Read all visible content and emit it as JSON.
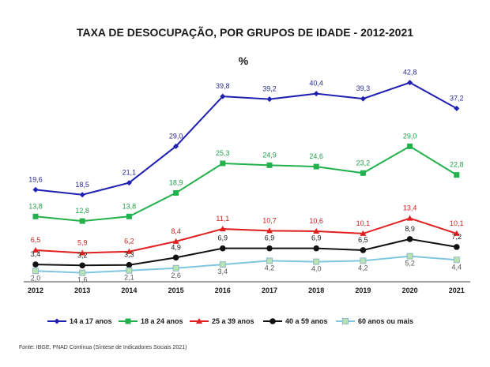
{
  "chart_data": {
    "type": "line",
    "title": "TAXA DE DESOCUPAÇÃO,  POR GRUPOS DE IDADE - 2012-2021",
    "subtitle": "%",
    "x": [
      "2012",
      "2013",
      "2014",
      "2015",
      "2016",
      "2017",
      "2018",
      "2019",
      "2020",
      "2021"
    ],
    "ylim": [
      0,
      45
    ],
    "grid": false,
    "legend_position": "bottom",
    "series": [
      {
        "name": "14 a 17 anos",
        "color": "#2020b0",
        "marker": "diamond",
        "label_color": "#2a2a90",
        "values": [
          19.6,
          18.5,
          21.1,
          29.0,
          39.8,
          39.2,
          40.4,
          39.3,
          42.8,
          37.2
        ],
        "labels": [
          "19,6",
          "18,5",
          "21,1",
          "29,0",
          "39,8",
          "39,2",
          "40,4",
          "39,3",
          "42,8",
          "37,2"
        ]
      },
      {
        "name": "18 a 24 anos",
        "color": "#22b14c",
        "marker": "square",
        "label_color": "#22a04a",
        "values": [
          13.8,
          12.8,
          13.8,
          18.9,
          25.3,
          24.9,
          24.6,
          23.2,
          29.0,
          22.8
        ],
        "labels": [
          "13,8",
          "12,8",
          "13,8",
          "18,9",
          "25,3",
          "24,9",
          "24,6",
          "23,2",
          "29,0",
          "22,8"
        ]
      },
      {
        "name": "25 a 39 anos",
        "color": "#e02020",
        "marker": "triangle",
        "label_color": "#cc2020",
        "values": [
          6.5,
          5.9,
          6.2,
          8.4,
          11.1,
          10.7,
          10.6,
          10.1,
          13.4,
          10.1
        ],
        "labels": [
          "6,5",
          "5,9",
          "6,2",
          "8,4",
          "11,1",
          "10,7",
          "10,6",
          "10,1",
          "13,4",
          "10,1"
        ]
      },
      {
        "name": "40 a 59 anos",
        "color": "#111111",
        "marker": "circle",
        "label_color": "#1a1a1a",
        "values": [
          3.4,
          3.2,
          3.3,
          4.9,
          6.9,
          6.9,
          6.9,
          6.5,
          8.9,
          7.2
        ],
        "labels": [
          "3,4",
          "3,2",
          "3,3",
          "4,9",
          "6,9",
          "6,9",
          "6,9",
          "6,5",
          "8,9",
          "7,2"
        ]
      },
      {
        "name": "60 anos ou mais",
        "color": "#7fc6e0",
        "marker": "square-light",
        "label_color": "#555555",
        "values": [
          2.0,
          1.6,
          2.1,
          2.6,
          3.4,
          4.2,
          4.0,
          4.2,
          5.2,
          4.4
        ],
        "labels": [
          "2,0",
          "1,6",
          "2,1",
          "2,6",
          "3,4",
          "4,2",
          "4,0",
          "4,2",
          "5,2",
          "4,4"
        ]
      }
    ]
  },
  "source": "Fonte: IBGE, PNAD  Contínua (Síntese de Indicadores Sociais 2021)"
}
